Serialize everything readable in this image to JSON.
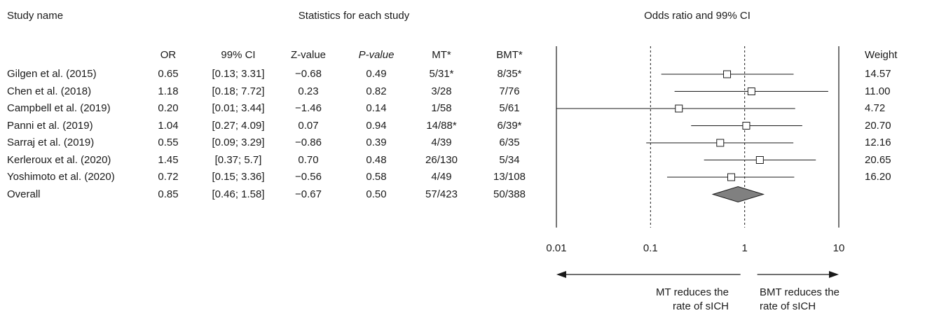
{
  "headers": {
    "study_name": "Study name",
    "statistics": "Statistics for each study",
    "plot_title": "Odds ratio and 99% CI",
    "weight": "Weight",
    "columns": [
      "OR",
      "99% CI",
      "Z-value",
      "P-value",
      "MT*",
      "BMT*"
    ]
  },
  "rows": [
    {
      "study": "Gilgen et al. (2015)",
      "or": "0.65",
      "ci": "[0.13; 3.31]",
      "z": "−0.68",
      "p": "0.49",
      "mt": "5/31*",
      "bmt": "8/35*",
      "weight": "14.57"
    },
    {
      "study": "Chen et al. (2018)",
      "or": "1.18",
      "ci": "[0.18; 7.72]",
      "z": "0.23",
      "p": "0.82",
      "mt": "3/28",
      "bmt": "7/76",
      "weight": "11.00"
    },
    {
      "study": "Campbell et al. (2019)",
      "or": "0.20",
      "ci": "[0.01; 3.44]",
      "z": "−1.46",
      "p": "0.14",
      "mt": "1/58",
      "bmt": "5/61",
      "weight": "4.72"
    },
    {
      "study": "Panni et al. (2019)",
      "or": "1.04",
      "ci": "[0.27; 4.09]",
      "z": "0.07",
      "p": "0.94",
      "mt": "14/88*",
      "bmt": "6/39*",
      "weight": "20.70"
    },
    {
      "study": "Sarraj et al. (2019)",
      "or": "0.55",
      "ci": "[0.09; 3.29]",
      "z": "−0.86",
      "p": "0.39",
      "mt": "4/39",
      "bmt": "6/35",
      "weight": "12.16"
    },
    {
      "study": "Kerleroux et al. (2020)",
      "or": "1.45",
      "ci": "[0.37; 5.7]",
      "z": "0.70",
      "p": "0.48",
      "mt": "26/130",
      "bmt": "5/34",
      "weight": "20.65"
    },
    {
      "study": "Yoshimoto et al. (2020)",
      "or": "0.72",
      "ci": "[0.15; 3.36]",
      "z": "−0.56",
      "p": "0.58",
      "mt": "4/49",
      "bmt": "13/108",
      "weight": "16.20"
    }
  ],
  "overall": {
    "study": "Overall",
    "or": "0.85",
    "ci": "[0.46; 1.58]",
    "z": "−0.67",
    "p": "0.50",
    "mt": "57/423",
    "bmt": "50/388"
  },
  "axis_ticks": [
    "0.01",
    "0.1",
    "1",
    "10"
  ],
  "direction": {
    "left_line1": "MT reduces the",
    "left_line2": "rate of sICH",
    "right_line1": "BMT reduces the",
    "right_line2": "rate of sICH"
  },
  "chart_data": {
    "type": "forest",
    "title": "Odds ratio and 99% CI",
    "x_scale": "log",
    "xlim": [
      0.01,
      10
    ],
    "reference_lines": [
      0.1,
      1
    ],
    "studies": [
      {
        "name": "Gilgen et al. (2015)",
        "or": 0.65,
        "lower": 0.13,
        "upper": 3.31,
        "weight": 14.57
      },
      {
        "name": "Chen et al. (2018)",
        "or": 1.18,
        "lower": 0.18,
        "upper": 7.72,
        "weight": 11.0
      },
      {
        "name": "Campbell et al. (2019)",
        "or": 0.2,
        "lower": 0.01,
        "upper": 3.44,
        "weight": 4.72
      },
      {
        "name": "Panni et al. (2019)",
        "or": 1.04,
        "lower": 0.27,
        "upper": 4.09,
        "weight": 20.7
      },
      {
        "name": "Sarraj et al. (2019)",
        "or": 0.55,
        "lower": 0.09,
        "upper": 3.29,
        "weight": 12.16
      },
      {
        "name": "Kerleroux et al. (2020)",
        "or": 1.45,
        "lower": 0.37,
        "upper": 5.7,
        "weight": 20.65
      },
      {
        "name": "Yoshimoto et al. (2020)",
        "or": 0.72,
        "lower": 0.15,
        "upper": 3.36,
        "weight": 16.2
      }
    ],
    "overall": {
      "name": "Overall",
      "or": 0.85,
      "lower": 0.46,
      "upper": 1.58
    }
  }
}
